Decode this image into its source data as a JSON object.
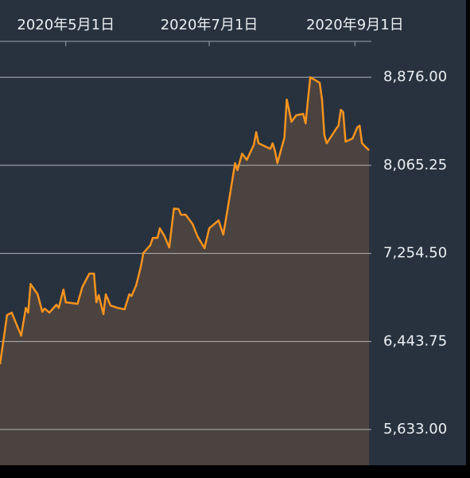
{
  "chart_data": {
    "type": "area",
    "color": "#f7931e",
    "fill_color": "#4b433f",
    "grid": true,
    "x": [
      "2020-04-03",
      "2020-04-06",
      "2020-04-08",
      "2020-04-12",
      "2020-04-14",
      "2020-04-15",
      "2020-04-16",
      "2020-04-19",
      "2020-04-21",
      "2020-04-22",
      "2020-04-24",
      "2020-04-27",
      "2020-04-28",
      "2020-04-30",
      "2020-05-01",
      "2020-05-06",
      "2020-05-08",
      "2020-05-11",
      "2020-05-13",
      "2020-05-14",
      "2020-05-15",
      "2020-05-17",
      "2020-05-18",
      "2020-05-20",
      "2020-05-23",
      "2020-05-26",
      "2020-05-28",
      "2020-05-29",
      "2020-05-31",
      "2020-06-02",
      "2020-06-03",
      "2020-06-06",
      "2020-06-07",
      "2020-06-09",
      "2020-06-10",
      "2020-06-12",
      "2020-06-14",
      "2020-06-16",
      "2020-06-18",
      "2020-06-19",
      "2020-06-21",
      "2020-06-24",
      "2020-06-26",
      "2020-06-29",
      "2020-07-01",
      "2020-07-05",
      "2020-07-07",
      "2020-07-09",
      "2020-07-12",
      "2020-07-13",
      "2020-07-15",
      "2020-07-17",
      "2020-07-20",
      "2020-07-21",
      "2020-07-22",
      "2020-07-27",
      "2020-07-28",
      "2020-07-29",
      "2020-07-30",
      "2020-08-02",
      "2020-08-03",
      "2020-08-05",
      "2020-08-07",
      "2020-08-10",
      "2020-08-11",
      "2020-08-13",
      "2020-08-17",
      "2020-08-18",
      "2020-08-19",
      "2020-08-20",
      "2020-08-24",
      "2020-08-25",
      "2020-08-26",
      "2020-08-27",
      "2020-08-28",
      "2020-08-31",
      "2020-09-02",
      "2020-09-03",
      "2020-09-04",
      "2020-09-07"
    ],
    "values": [
      6233,
      6687,
      6709,
      6497,
      6753,
      6709,
      6973,
      6878,
      6717,
      6746,
      6709,
      6782,
      6753,
      6922,
      6804,
      6790,
      6943,
      7068,
      7068,
      6804,
      6870,
      6695,
      6878,
      6775,
      6753,
      6739,
      6878,
      6863,
      6965,
      7141,
      7258,
      7331,
      7397,
      7397,
      7485,
      7412,
      7309,
      7668,
      7661,
      7610,
      7610,
      7522,
      7412,
      7302,
      7485,
      7558,
      7427,
      7683,
      8085,
      8020,
      8173,
      8115,
      8254,
      8371,
      8268,
      8217,
      8268,
      8195,
      8085,
      8320,
      8671,
      8466,
      8525,
      8539,
      8451,
      8876,
      8825,
      8671,
      8342,
      8268,
      8400,
      8430,
      8576,
      8554,
      8283,
      8312,
      8415,
      8430,
      8268,
      8203
    ],
    "xlim": [
      "2020-04-03",
      "2020-09-08"
    ],
    "xticks": [
      {
        "value": "2020-05-01",
        "label": "2020年5月1日"
      },
      {
        "value": "2020-07-01",
        "label": "2020年7月1日"
      },
      {
        "value": "2020-09-01",
        "label": "2020年9月1日"
      }
    ],
    "ylim": [
      5304,
      9206
    ],
    "yticks": [
      {
        "value": 5633,
        "label": "5,633.00"
      },
      {
        "value": 6443.75,
        "label": "6,443.75"
      },
      {
        "value": 7254.5,
        "label": "7,254.50"
      },
      {
        "value": 8065.25,
        "label": "8,065.25"
      },
      {
        "value": 8876,
        "label": "8,876.00"
      }
    ]
  }
}
